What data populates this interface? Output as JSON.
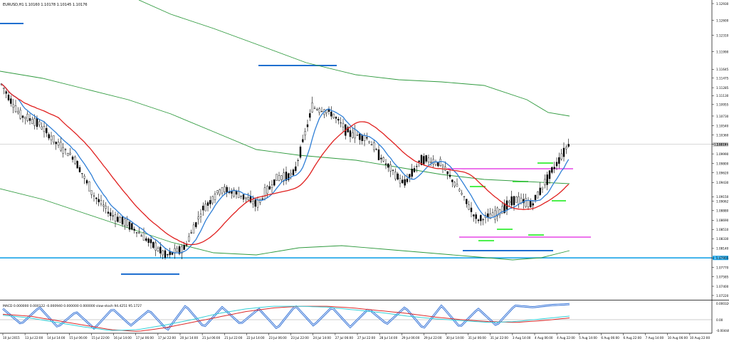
{
  "header": {
    "symbol_line": "EURUSD,H1  1.10160 1.10178 1.10145 1.10176",
    "indicator_line": "MACD 0.000000 0.000122 -0.000940 0.000000 0.000000  slow-stoch 94.4251 95.1727"
  },
  "colors": {
    "background": "#ffffff",
    "grid": "#d8d8d8",
    "candles": "#000000",
    "ma_fast": "#2f7fd6",
    "ma_slow": "#e0201f",
    "envelope": "#2f9a3e",
    "range_box": "#e020e0",
    "support_levels": "#1f6fd0",
    "highlight_level": "#19a4e8",
    "bid_line": "#b0b0b0",
    "level_marks": "#33ee33",
    "stoch_line": "#2f6fd6",
    "macd_red": "#dd2b2b",
    "macd_cyan": "#35d0d8"
  },
  "chart_data": [
    {
      "type": "line",
      "title": "EURUSD,H1  1.10160 1.10178 1.10145 1.10176",
      "xlabel": "",
      "ylabel": "",
      "x_tick_labels": [
        "10 Jul 2015",
        "13 Jul 22:00",
        "14 Jul 14:00",
        "15 Jul 06:00",
        "15 Jul 22:00",
        "16 Jul 14:00",
        "17 Jul 06:00",
        "17 Jul 22:00",
        "20 Jul 14:00",
        "21 Jul 06:00",
        "21 Jul 22:00",
        "22 Jul 14:00",
        "23 Jul 06:00",
        "23 Jul 22:00",
        "24 Jul 14:00",
        "27 Jul 06:00",
        "27 Jul 22:00",
        "28 Jul 14:00",
        "29 Jul 06:00",
        "29 Jul 22:00",
        "30 Jul 14:00",
        "31 Jul 06:00",
        "31 Jul 22:00",
        "3 Aug 14:00",
        "4 Aug 06:00",
        "4 Aug 22:00",
        "5 Aug 14:00",
        "6 Aug 06:00",
        "6 Aug 22:00",
        "7 Aug 14:00",
        "10 Aug 06:00",
        "10 Aug 22:00"
      ],
      "y_tick_labels": [
        "1.12930",
        "1.12600",
        "1.12310",
        "1.11990",
        "1.11645",
        "1.11475",
        "1.11285",
        "1.11130",
        "1.10955",
        "1.10730",
        "1.10540",
        "1.10360",
        "1.10176",
        "1.09990",
        "1.09800",
        "1.09620",
        "1.09430",
        "1.09150",
        "1.09062",
        "1.08880",
        "1.08690",
        "1.08510",
        "1.08330",
        "1.08140",
        "1.07955",
        "1.07770",
        "1.07585",
        "1.07400",
        "1.07220"
      ],
      "current_price_label": "1.10176",
      "highlight_level_label": "1.07955",
      "ylim": [
        1.0715,
        1.13
      ],
      "series": [],
      "ohlc_sample": [
        [
          1.116,
          1.1175,
          1.112,
          1.1135
        ],
        [
          1.112,
          1.1135,
          1.106,
          1.1075
        ],
        [
          1.108,
          1.11,
          1.103,
          1.106
        ],
        [
          1.105,
          1.107,
          1.1,
          1.102
        ],
        [
          1.1,
          1.103,
          1.096,
          1.099
        ],
        [
          1.096,
          1.098,
          1.09,
          1.092
        ],
        [
          1.09,
          1.093,
          1.086,
          1.088
        ],
        [
          1.088,
          1.09,
          1.084,
          1.086
        ],
        [
          1.085,
          1.088,
          1.081,
          1.083
        ],
        [
          1.082,
          1.085,
          1.079,
          1.08
        ],
        [
          1.08,
          1.083,
          1.0785,
          1.0815
        ],
        [
          1.083,
          1.091,
          1.082,
          1.089
        ],
        [
          1.09,
          1.096,
          1.088,
          1.093
        ],
        [
          1.094,
          1.098,
          1.09,
          1.092
        ],
        [
          1.092,
          1.095,
          1.088,
          1.09
        ],
        [
          1.091,
          1.097,
          1.089,
          1.095
        ],
        [
          1.096,
          1.1,
          1.093,
          1.096
        ],
        [
          1.099,
          1.111,
          1.097,
          1.109
        ],
        [
          1.11,
          1.113,
          1.106,
          1.108
        ],
        [
          1.107,
          1.109,
          1.102,
          1.104
        ],
        [
          1.105,
          1.107,
          1.1,
          1.103
        ],
        [
          1.101,
          1.103,
          1.096,
          1.098
        ],
        [
          1.096,
          1.099,
          1.09,
          1.094
        ],
        [
          1.098,
          1.112,
          1.096,
          1.099
        ],
        [
          1.099,
          1.101,
          1.095,
          1.098
        ],
        [
          1.096,
          1.098,
          1.09,
          1.093
        ],
        [
          1.09,
          1.092,
          1.084,
          1.087
        ],
        [
          1.087,
          1.09,
          1.085,
          1.088
        ],
        [
          1.089,
          1.093,
          1.086,
          1.091
        ],
        [
          1.088,
          1.092,
          1.084,
          1.09
        ],
        [
          1.093,
          1.098,
          1.09,
          1.096
        ],
        [
          1.097,
          1.104,
          1.095,
          1.1018
        ]
      ]
    },
    {
      "type": "line",
      "title": "MACD 0.000000 0.000122 -0.000940 0.000000 0.000000  slow-stoch 94.4251 95.1727",
      "y_tick_labels": [
        "0.000326",
        "0.00",
        "-0.004446"
      ],
      "series": [
        {
          "name": "",
          "color_key": "stoch_line",
          "values": [
            80,
            30,
            85,
            20,
            70,
            15,
            80,
            25,
            75,
            10,
            90,
            20,
            85,
            30,
            80,
            15,
            90,
            25,
            85,
            20,
            80,
            30,
            85,
            15,
            90,
            20,
            80,
            25,
            90,
            85,
            92,
            95
          ]
        },
        {
          "name": "",
          "color_key": "macd_red",
          "values": [
            0.0003,
            0.0001,
            -0.0004,
            -0.0009,
            -0.0014,
            -0.0016,
            -0.0012,
            -0.0006,
            0.0,
            0.0006,
            0.001,
            0.0012,
            0.0012,
            0.001,
            0.0007,
            0.0004,
            0.0,
            -0.0003,
            -0.0005,
            -0.0006,
            -0.0004,
            -0.0001
          ]
        },
        {
          "name": "",
          "color_key": "macd_cyan",
          "values": [
            0.0002,
            -0.0001,
            -0.0006,
            -0.0011,
            -0.0015,
            -0.0014,
            -0.0009,
            -0.0003,
            0.0004,
            0.0009,
            0.0012,
            0.0012,
            0.0011,
            0.0008,
            0.0005,
            0.0001,
            -0.0002,
            -0.0004,
            -0.0006,
            -0.0005,
            -0.0002,
            0.0001
          ]
        }
      ]
    }
  ]
}
